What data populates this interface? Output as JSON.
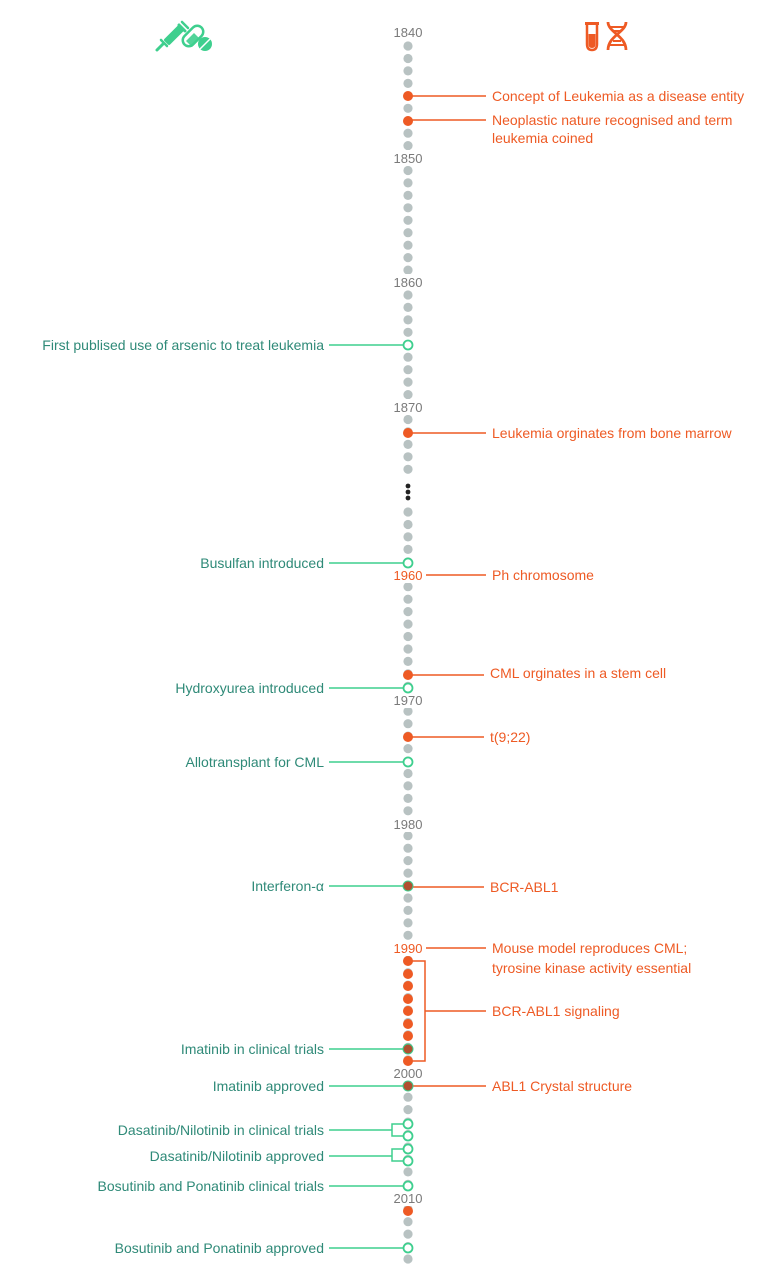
{
  "colors": {
    "treatment": "#2f8a78",
    "treatment_icon": "#3ecf8e",
    "biology": "#ee5a24",
    "track_dot": "#b8c2c2",
    "ellipsis": "#222222"
  },
  "header": {
    "left_icons": [
      "syringe-icon",
      "pills-icon"
    ],
    "right_icons": [
      "test-tube-icon",
      "dna-icon"
    ]
  },
  "year_labels": [
    {
      "label": "1840",
      "accent": false
    },
    {
      "label": "1850",
      "accent": false
    },
    {
      "label": "1860",
      "accent": false
    },
    {
      "label": "1870",
      "accent": false
    },
    {
      "label": "1960",
      "accent": true
    },
    {
      "label": "1970",
      "accent": false
    },
    {
      "label": "1980",
      "accent": false
    },
    {
      "label": "1990",
      "accent": true
    },
    {
      "label": "2000",
      "accent": false
    },
    {
      "label": "2010",
      "accent": false
    }
  ],
  "right_events": [
    {
      "lines": [
        "Concept of Leukemia as a disease entity"
      ]
    },
    {
      "lines": [
        "Neoplastic nature recognised and term",
        "leukemia coined"
      ]
    },
    {
      "lines": [
        "Leukemia orginates from bone marrow"
      ]
    },
    {
      "lines": [
        "Ph chromosome"
      ]
    },
    {
      "lines": [
        "CML orginates in a stem cell"
      ]
    },
    {
      "lines": [
        "t(9;22)"
      ]
    },
    {
      "lines": [
        "BCR-ABL1"
      ]
    },
    {
      "lines": [
        "Mouse model reproduces CML;",
        "tyrosine kinase activity essential"
      ]
    },
    {
      "lines": [
        "BCR-ABL1 signaling"
      ]
    },
    {
      "lines": [
        "ABL1 Crystal structure"
      ]
    }
  ],
  "left_events": [
    {
      "lines": [
        "First publised use of arsenic to treat leukemia"
      ]
    },
    {
      "lines": [
        "Busulfan introduced"
      ]
    },
    {
      "lines": [
        "Hydroxyurea introduced"
      ]
    },
    {
      "lines": [
        "Allotransplant for CML"
      ]
    },
    {
      "lines": [
        "Interferon-α"
      ]
    },
    {
      "lines": [
        "Imatinib in clinical trials"
      ]
    },
    {
      "lines": [
        "Imatinib approved"
      ]
    },
    {
      "lines": [
        "Dasatinib/Nilotinib in clinical trials"
      ]
    },
    {
      "lines": [
        "Dasatinib/Nilotinib approved"
      ]
    },
    {
      "lines": [
        "Bosutinib and Ponatinib clinical trials"
      ]
    },
    {
      "lines": [
        "Bosutinib and Ponatinib approved"
      ]
    }
  ]
}
